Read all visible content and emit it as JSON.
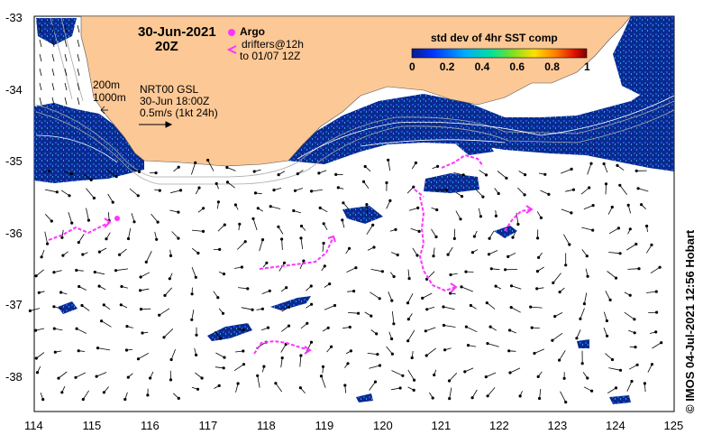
{
  "title": {
    "date": "30-Jun-2021",
    "hour": "20Z"
  },
  "legend": {
    "argo_label": "Argo",
    "drifters_line1": "drifters@12h",
    "drifters_line2": "to 01/07 12Z",
    "colorbar_title": "std dev of 4hr SST comp",
    "colorbar_ticks": [
      "0",
      "0.2",
      "0.4",
      "0.6",
      "0.8",
      "1"
    ],
    "colorbar_colors": [
      "#0b1a8c",
      "#0033ff",
      "#00aaff",
      "#00e0a0",
      "#80e020",
      "#ffe000",
      "#ff8000",
      "#e01000",
      "#800000"
    ]
  },
  "info": {
    "isobath_1": "200m",
    "isobath_2": "1000m",
    "product": "NRT00 GSL",
    "analysis_time": "30-Jun 18:00Z",
    "scale_arrow": "0.5m/s (1kt 24h)"
  },
  "axes": {
    "x_ticks": [
      "114",
      "115",
      "116",
      "117",
      "118",
      "119",
      "120",
      "121",
      "122",
      "123",
      "124",
      "125"
    ],
    "y_ticks": [
      "-33",
      "-34",
      "-35",
      "-36",
      "-37",
      "-38"
    ]
  },
  "credit": "© IMOS 04-Jul-2021 12:56 Hobart",
  "colors": {
    "land": "#fcc896",
    "sst_patch": "#0a2a8f",
    "drifter": "#ff33ff",
    "contour": "#a0a0a0"
  }
}
